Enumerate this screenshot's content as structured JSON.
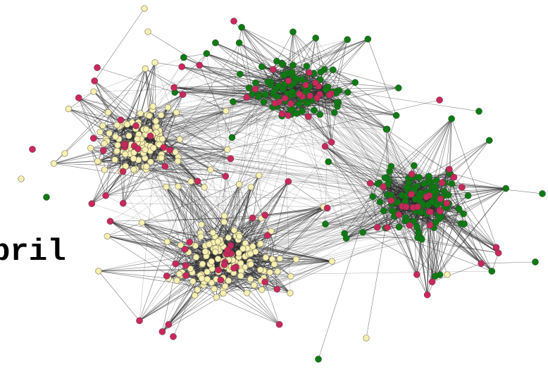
{
  "label": {
    "text": "pril"
  },
  "legend_colors": {
    "yellow": "#f7f0b0",
    "green": "#0e7a12",
    "magenta": "#c8285a",
    "edge": "#2a2a2a",
    "node_outline": "#3a3a3a"
  }
}
